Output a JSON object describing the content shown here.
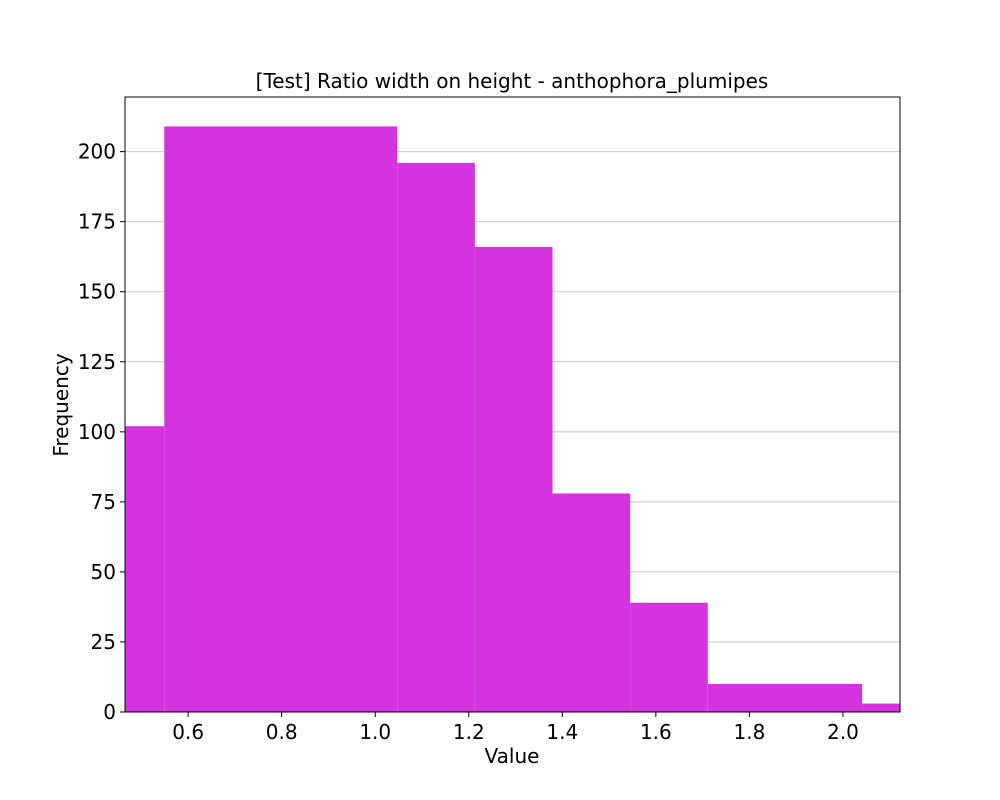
{
  "chart_data": {
    "type": "bar",
    "title": "[Test] Ratio width on height - anthophora_plumipes",
    "xlabel": "Value",
    "ylabel": "Frequency",
    "xlim": [
      0.465,
      2.122
    ],
    "ylim": [
      0,
      219.5
    ],
    "bins": [
      {
        "x0": 0.465,
        "x1": 0.549,
        "value": 102
      },
      {
        "x0": 0.549,
        "x1": 1.047,
        "value": 209
      },
      {
        "x0": 1.047,
        "x1": 1.213,
        "value": 196
      },
      {
        "x0": 1.213,
        "x1": 1.379,
        "value": 166
      },
      {
        "x0": 1.379,
        "x1": 1.545,
        "value": 78
      },
      {
        "x0": 1.545,
        "x1": 1.711,
        "value": 39
      },
      {
        "x0": 1.711,
        "x1": 2.041,
        "value": 10
      },
      {
        "x0": 2.041,
        "x1": 2.122,
        "value": 3
      }
    ],
    "xticks": [
      {
        "value": 0.6,
        "label": "0.6"
      },
      {
        "value": 0.8,
        "label": "0.8"
      },
      {
        "value": 1.0,
        "label": "1.0"
      },
      {
        "value": 1.2,
        "label": "1.2"
      },
      {
        "value": 1.4,
        "label": "1.4"
      },
      {
        "value": 1.6,
        "label": "1.6"
      },
      {
        "value": 1.8,
        "label": "1.8"
      },
      {
        "value": 2.0,
        "label": "2.0"
      }
    ],
    "yticks": [
      {
        "value": 0,
        "label": "0"
      },
      {
        "value": 25,
        "label": "25"
      },
      {
        "value": 50,
        "label": "50"
      },
      {
        "value": 75,
        "label": "75"
      },
      {
        "value": 100,
        "label": "100"
      },
      {
        "value": 125,
        "label": "125"
      },
      {
        "value": 150,
        "label": "150"
      },
      {
        "value": 175,
        "label": "175"
      },
      {
        "value": 200,
        "label": "200"
      }
    ],
    "grid": {
      "x": false,
      "y": true
    },
    "colors": {
      "bar": "#d633e0",
      "grid": "#c8c8c8",
      "axis": "#000000"
    }
  }
}
